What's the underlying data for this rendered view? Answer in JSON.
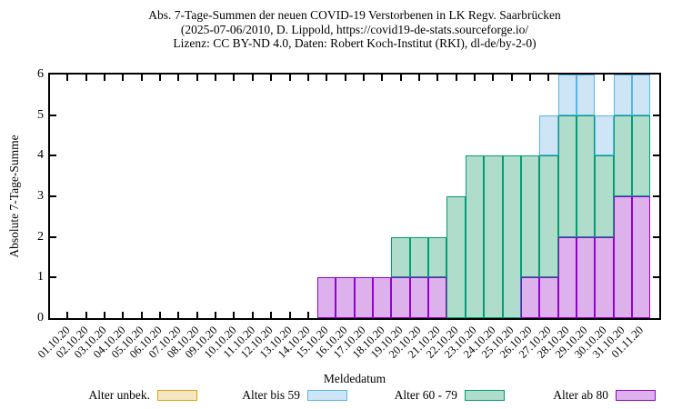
{
  "title": {
    "line1": "Abs. 7-Tage-Summen der neuen COVID-19 Verstorbenen in LK Regv. Saarbrücken",
    "line2": "(2025-07-06/2010, D. Lippold, https://covid19-de-stats.sourceforge.io/",
    "line3": "Lizenz: CC BY-ND 4.0, Daten: Robert Koch-Institut (RKI), dl-de/by-2-0)"
  },
  "y_axis": {
    "label": "Absolute 7-Tage-Summe",
    "ticks": [
      "0",
      "1",
      "2",
      "3",
      "4",
      "5",
      "6"
    ],
    "min": 0,
    "max": 6
  },
  "x_axis": {
    "label": "Meldedatum",
    "tick_labels": [
      "01.10.20",
      "02.10.20",
      "03.10.20",
      "04.10.20",
      "05.10.20",
      "06.10.20",
      "07.10.20",
      "08.10.20",
      "09.10.20",
      "10.10.20",
      "11.10.20",
      "12.10.20",
      "13.10.20",
      "14.10.20",
      "15.10.20",
      "16.10.20",
      "17.10.20",
      "18.10.20",
      "19.10.20",
      "20.10.20",
      "21.10.20",
      "22.10.20",
      "23.10.20",
      "24.10.20",
      "25.10.20",
      "26.10.20",
      "27.10.20",
      "28.10.20",
      "29.10.20",
      "30.10.20",
      "31.10.20",
      "01.11.20"
    ]
  },
  "legend": [
    {
      "label": "Alter unbek.",
      "color_border": "#E69F00",
      "color_fill": "#F7E6C3"
    },
    {
      "label": "Alter bis 59",
      "color_border": "#56B4E9",
      "color_fill": "#CEE5F6"
    },
    {
      "label": "Alter 60 - 79",
      "color_border": "#009E73",
      "color_fill": "#AFDCCB"
    },
    {
      "label": "Alter ab 80",
      "color_border": "#9400D3",
      "color_fill": "#DDB2EC"
    }
  ],
  "chart_data": {
    "type": "bar",
    "stacked": true,
    "title": "Abs. 7-Tage-Summen der neuen COVID-19 Verstorbenen in LK Regv. Saarbrücken",
    "xlabel": "Meldedatum",
    "ylabel": "Absolute 7-Tage-Summe",
    "ylim": [
      0,
      6
    ],
    "grid": false,
    "legend_position": "bottom",
    "categories": [
      "15.10.20",
      "16.10.20",
      "17.10.20",
      "18.10.20",
      "19.10.20",
      "20.10.20",
      "21.10.20",
      "22.10.20",
      "23.10.20",
      "24.10.20",
      "25.10.20",
      "26.10.20",
      "27.10.20",
      "28.10.20",
      "29.10.20",
      "30.10.20",
      "31.10.20",
      "01.11.20"
    ],
    "stack_order": [
      "Alter ab 80",
      "Alter 60 - 79",
      "Alter bis 59",
      "Alter unbek."
    ],
    "series": [
      {
        "name": "Alter ab 80",
        "values": [
          1,
          1,
          1,
          1,
          1,
          1,
          1,
          0,
          0,
          0,
          0,
          1,
          1,
          2,
          2,
          2,
          3,
          3
        ]
      },
      {
        "name": "Alter 60 - 79",
        "values": [
          0,
          0,
          0,
          0,
          1,
          1,
          1,
          3,
          4,
          4,
          4,
          3,
          3,
          3,
          3,
          2,
          2,
          2
        ]
      },
      {
        "name": "Alter bis 59",
        "values": [
          0,
          0,
          0,
          0,
          0,
          0,
          0,
          0,
          0,
          0,
          0,
          0,
          1,
          1,
          1,
          1,
          1,
          1
        ]
      },
      {
        "name": "Alter unbek.",
        "values": [
          0,
          0,
          0,
          0,
          0,
          0,
          0,
          0,
          0,
          0,
          0,
          0,
          0,
          0,
          0,
          0,
          0,
          0
        ]
      }
    ],
    "totals": [
      1,
      1,
      1,
      1,
      2,
      2,
      2,
      3,
      4,
      4,
      4,
      4,
      5,
      6,
      6,
      5,
      6,
      6
    ]
  }
}
